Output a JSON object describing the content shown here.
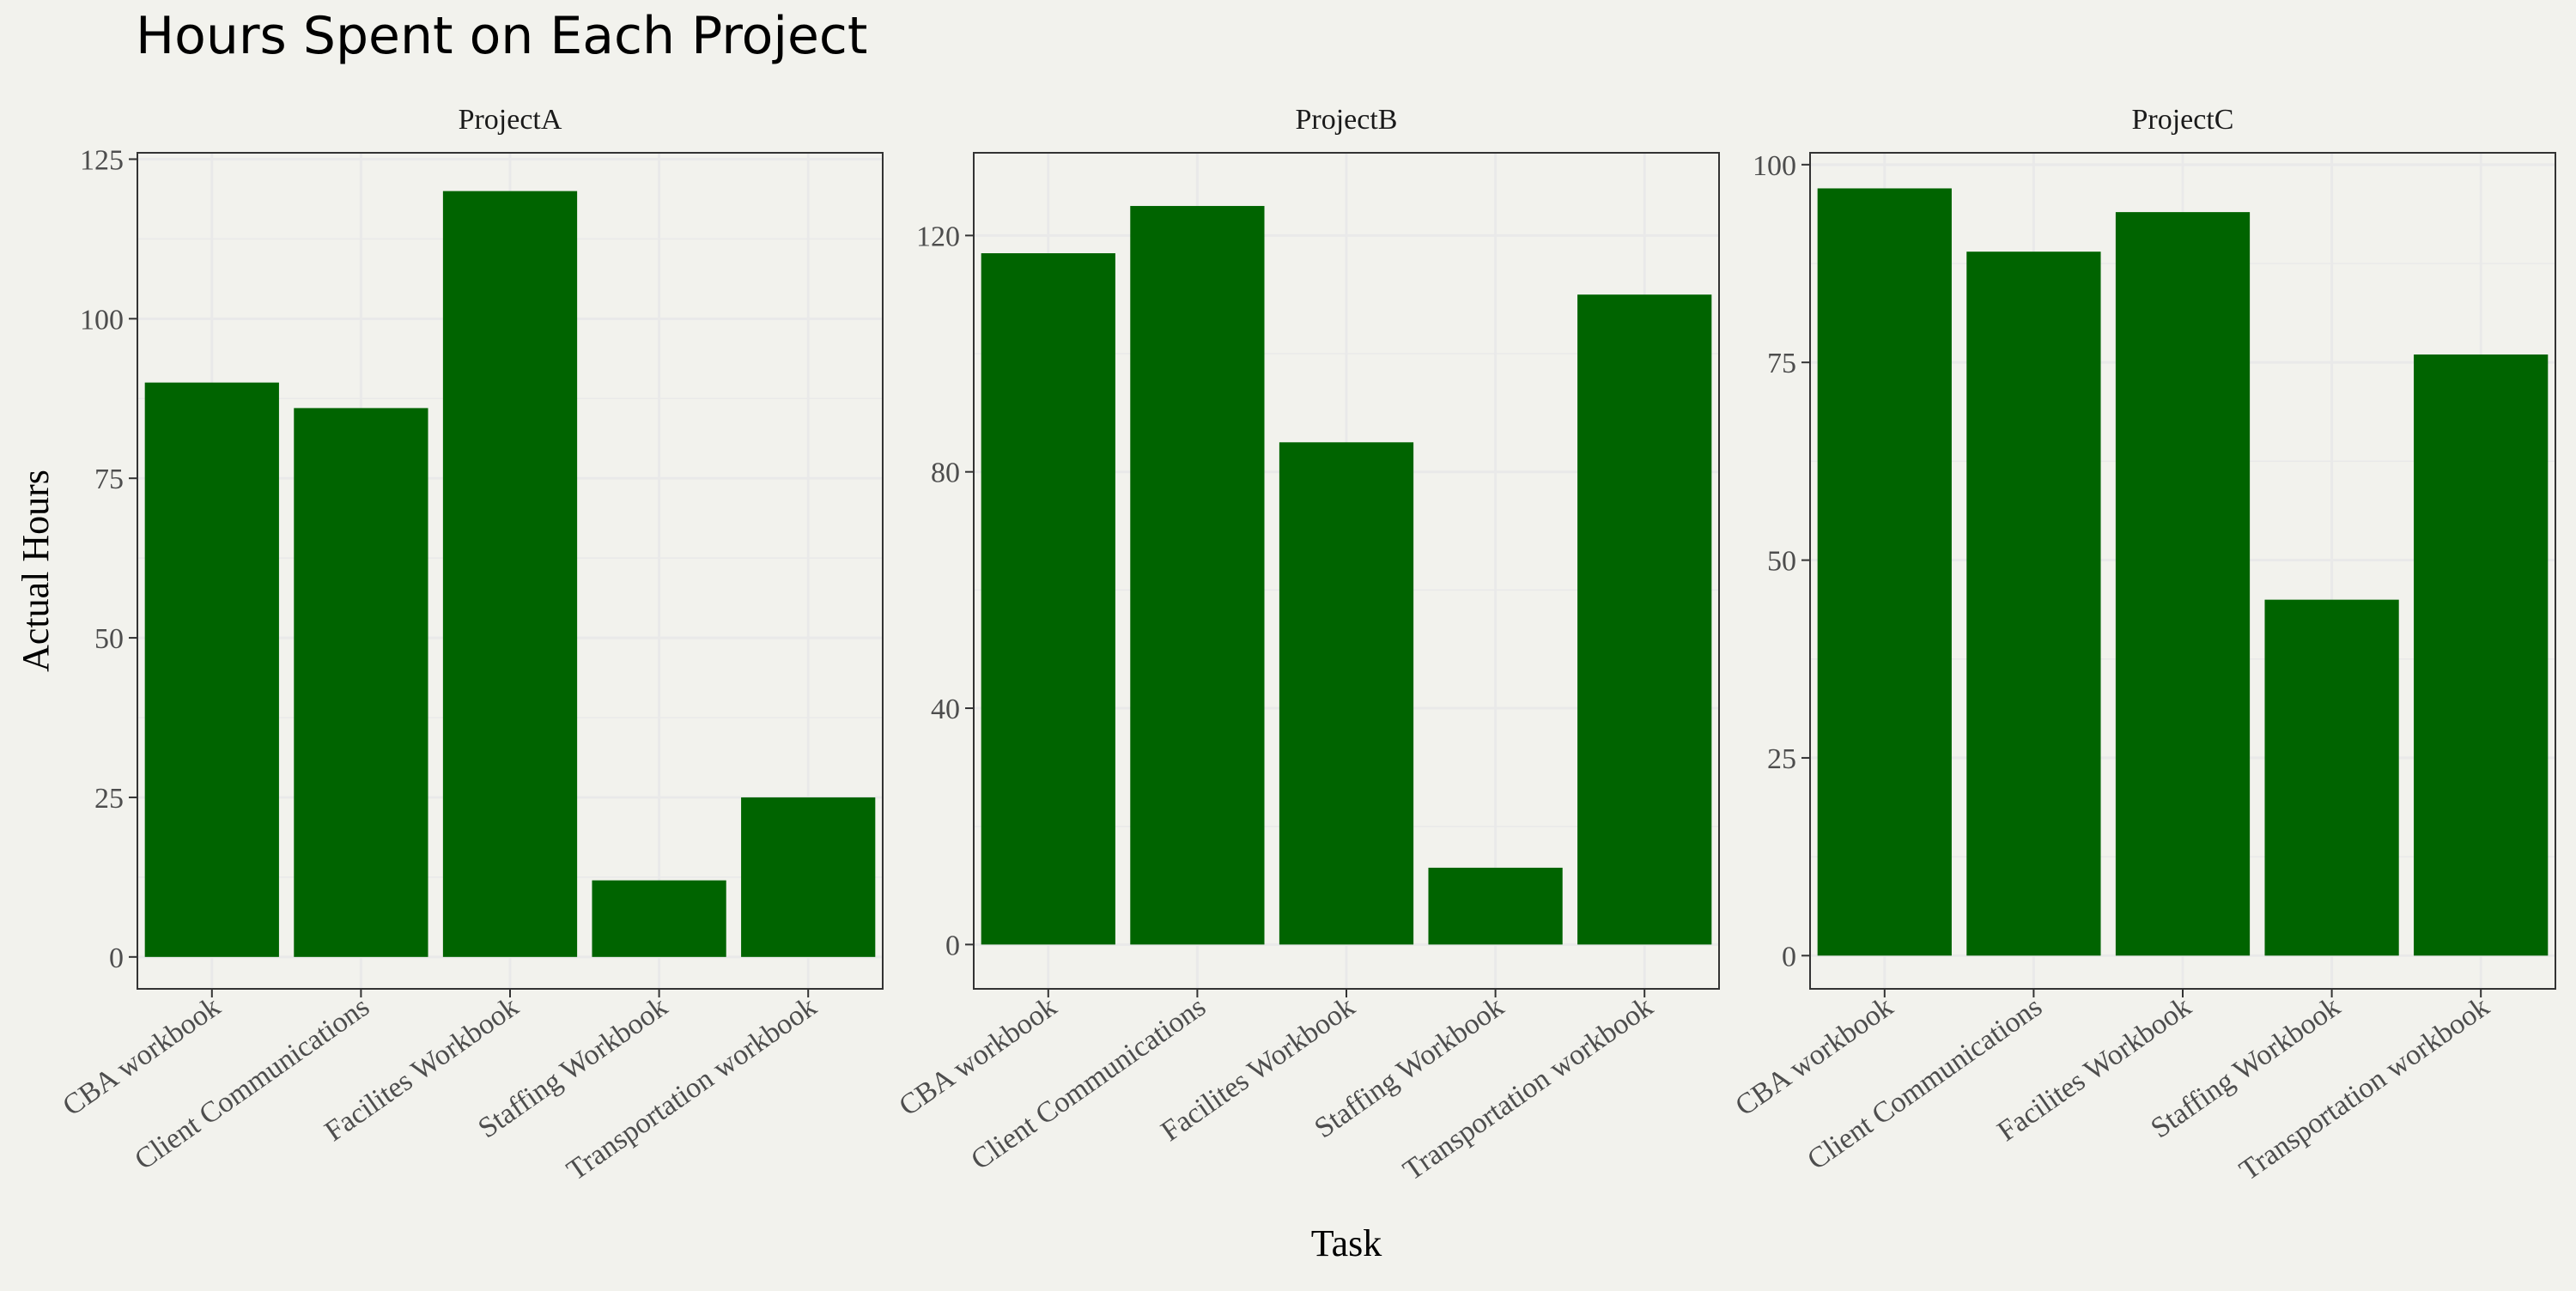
{
  "chart_data": {
    "type": "bar",
    "title": "Hours Spent on Each Project",
    "xlabel": "Task",
    "ylabel": "Actual Hours",
    "grid": true,
    "bar_color": "#006400",
    "background_color": "#f2f2ed",
    "grid_color": "#e9e9e9",
    "categories": [
      "CBA workbook",
      "Client Communications",
      "Facilites Workbook",
      "Staffing Workbook",
      "Transportation workbook"
    ],
    "panels": [
      {
        "name": "ProjectA",
        "values": [
          90,
          86,
          120,
          12,
          25
        ],
        "ylim": [
          -5,
          126
        ],
        "yticks": [
          0,
          25,
          50,
          75,
          100,
          125
        ]
      },
      {
        "name": "ProjectB",
        "values": [
          117,
          125,
          85,
          13,
          110
        ],
        "ylim": [
          -7.5,
          134
        ],
        "yticks": [
          0,
          40,
          80,
          120
        ]
      },
      {
        "name": "ProjectC",
        "values": [
          97,
          89,
          94,
          45,
          76
        ],
        "ylim": [
          -4.2,
          101.5
        ],
        "yticks": [
          0,
          25,
          50,
          75,
          100
        ]
      }
    ]
  }
}
